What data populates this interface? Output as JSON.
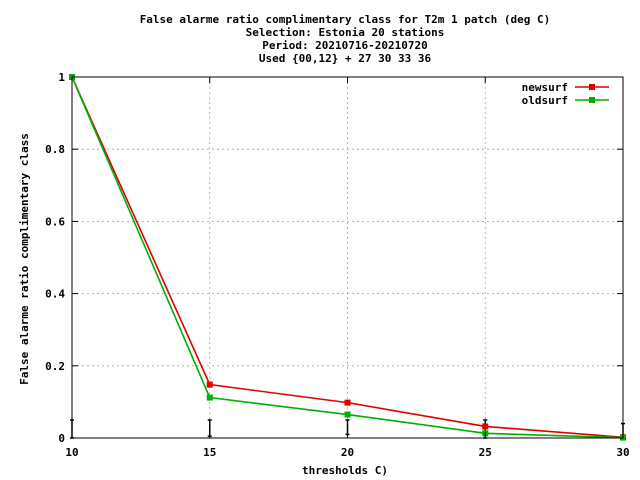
{
  "chart_data": {
    "type": "line",
    "title_lines": [
      "False alarme ratio complimentary class  for T2m 1 patch (deg C)",
      "Selection: Estonia     20 stations",
      "Period: 20210716-20210720",
      "Used {00,12} + 27 30 33 36"
    ],
    "xlabel": "thresholds C)",
    "ylabel": "False alarme ratio complimentary class",
    "xlim": [
      10,
      30
    ],
    "ylim": [
      0,
      1
    ],
    "x_ticks": [
      "10",
      "15",
      "20",
      "25",
      "30"
    ],
    "y_ticks": [
      "0",
      "0.2",
      "0.4",
      "0.6",
      "0.8",
      "1"
    ],
    "grid": true,
    "legend_position": "top-right",
    "x": [
      10,
      15,
      20,
      25,
      30
    ],
    "series": [
      {
        "name": "newsurf",
        "color": "#e00000",
        "values": [
          1.0,
          0.148,
          0.098,
          0.032,
          0.002
        ]
      },
      {
        "name": "oldsurf",
        "color": "#00b000",
        "values": [
          1.0,
          0.112,
          0.065,
          0.013,
          0.001
        ]
      }
    ],
    "error_bars": {
      "x": [
        10,
        15,
        20,
        25,
        30
      ],
      "low": [
        0.0,
        0.005,
        0.01,
        0.0,
        0.0
      ],
      "high": [
        0.05,
        0.05,
        0.05,
        0.05,
        0.04
      ]
    }
  }
}
